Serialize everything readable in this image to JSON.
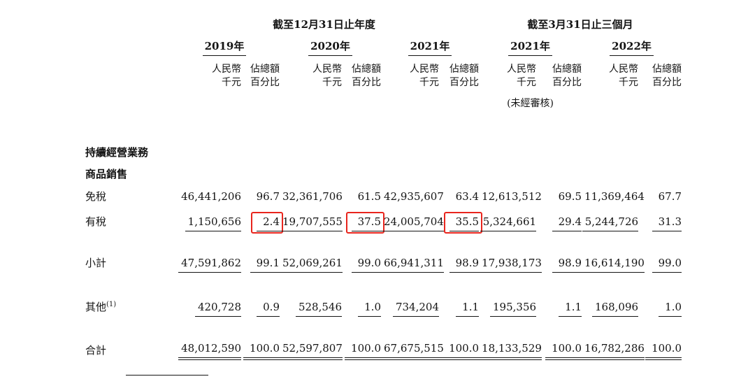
{
  "header": {
    "annual_group": "截至12月31日止年度",
    "quarter_group": "截至3月31日止三個月",
    "years": [
      "2019年",
      "2020年",
      "2021年",
      "2021年",
      "2022年"
    ],
    "amount_l1": "人民幣",
    "amount_l2": "千元",
    "pct_l1": "佔總額",
    "pct_l2": "百分比",
    "unaudited_note": "(未經審核)"
  },
  "highlight_color": "#e8251d",
  "table": {
    "rows": [
      {
        "key": "section1",
        "label": "持續經營業務"
      },
      {
        "key": "section2",
        "label": "商品銷售"
      },
      {
        "key": "dutyfree",
        "label": "免稅",
        "values": [
          "46,441,206",
          "96.7",
          "32,361,706",
          "61.5",
          "42,935,607",
          "63.4",
          "12,613,512",
          "69.5",
          "11,369,464",
          "67.7"
        ]
      },
      {
        "key": "taxed",
        "label": "有稅",
        "underline": "single",
        "highlight": [
          1,
          3,
          5
        ],
        "values": [
          "1,150,656",
          "2.4",
          "19,707,555",
          "37.5",
          "24,005,704",
          "35.5",
          "5,324,661",
          "29.4",
          "5,244,726",
          "31.3"
        ]
      },
      {
        "key": "subtotal",
        "label": "小計",
        "underline": "single",
        "values": [
          "47,591,862",
          "99.1",
          "52,069,261",
          "99.0",
          "66,941,311",
          "98.9",
          "17,938,173",
          "98.9",
          "16,614,190",
          "99.0"
        ]
      },
      {
        "key": "others",
        "label": "其他",
        "sup": "(1)",
        "underline": "single",
        "values": [
          "420,728",
          "0.9",
          "528,546",
          "1.0",
          "734,204",
          "1.1",
          "195,356",
          "1.1",
          "168,096",
          "1.0"
        ]
      },
      {
        "key": "total",
        "label": "合計",
        "underline": "double",
        "values": [
          "48,012,590",
          "100.0",
          "52,597,807",
          "100.0",
          "67,675,515",
          "100.0",
          "18,133,529",
          "100.0",
          "16,782,286",
          "100.0"
        ]
      }
    ]
  }
}
